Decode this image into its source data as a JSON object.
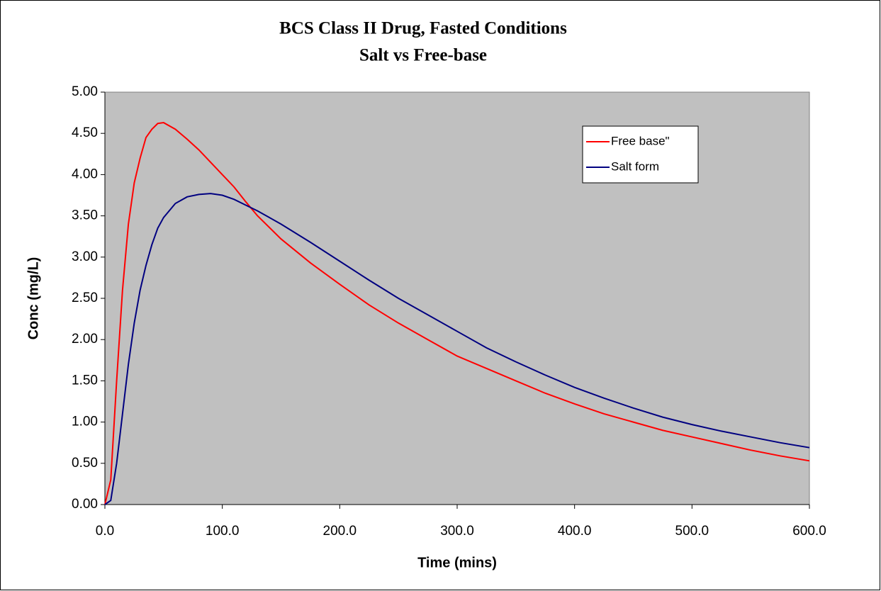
{
  "chart_data": {
    "type": "line",
    "title": "BCS Class II Drug, Fasted Conditions",
    "subtitle": "Salt vs Free-base",
    "x_label": "Time (mins)",
    "y_label": "Conc (mg/L)",
    "x": [
      0,
      5,
      10,
      15,
      20,
      25,
      30,
      35,
      40,
      45,
      50,
      60,
      70,
      80,
      90,
      100,
      110,
      120,
      130,
      140,
      150,
      175,
      200,
      225,
      250,
      275,
      300,
      325,
      350,
      375,
      400,
      425,
      450,
      475,
      500,
      525,
      550,
      575,
      600
    ],
    "series": [
      {
        "name": "Free base\"",
        "color": "#ff0000",
        "values": [
          0,
          0.3,
          1.5,
          2.6,
          3.4,
          3.9,
          4.2,
          4.45,
          4.55,
          4.62,
          4.63,
          4.55,
          4.43,
          4.3,
          4.15,
          4.0,
          3.85,
          3.67,
          3.5,
          3.36,
          3.22,
          2.93,
          2.67,
          2.42,
          2.2,
          2.0,
          1.8,
          1.65,
          1.5,
          1.35,
          1.22,
          1.1,
          1.0,
          0.9,
          0.82,
          0.74,
          0.66,
          0.59,
          0.53
        ]
      },
      {
        "name": "Salt form",
        "color": "#000080",
        "values": [
          0,
          0.05,
          0.5,
          1.1,
          1.7,
          2.2,
          2.6,
          2.9,
          3.15,
          3.35,
          3.48,
          3.65,
          3.73,
          3.76,
          3.77,
          3.75,
          3.7,
          3.63,
          3.56,
          3.48,
          3.4,
          3.18,
          2.95,
          2.72,
          2.5,
          2.3,
          2.1,
          1.9,
          1.73,
          1.57,
          1.42,
          1.29,
          1.17,
          1.06,
          0.97,
          0.89,
          0.82,
          0.75,
          0.69
        ]
      }
    ],
    "xlim": [
      0,
      600
    ],
    "ylim": [
      0,
      5
    ],
    "xticks": [
      {
        "value": 0,
        "label": "0.0"
      },
      {
        "value": 100,
        "label": "100.0"
      },
      {
        "value": 200,
        "label": "200.0"
      },
      {
        "value": 300,
        "label": "300.0"
      },
      {
        "value": 400,
        "label": "400.0"
      },
      {
        "value": 500,
        "label": "500.0"
      },
      {
        "value": 600,
        "label": "600.0"
      }
    ],
    "yticks": [
      {
        "value": 0,
        "label": "0.00"
      },
      {
        "value": 0.5,
        "label": "0.50"
      },
      {
        "value": 1,
        "label": "1.00"
      },
      {
        "value": 1.5,
        "label": "1.50"
      },
      {
        "value": 2,
        "label": "2.00"
      },
      {
        "value": 2.5,
        "label": "2.50"
      },
      {
        "value": 3,
        "label": "3.00"
      },
      {
        "value": 3.5,
        "label": "3.50"
      },
      {
        "value": 4,
        "label": "4.00"
      },
      {
        "value": 4.5,
        "label": "4.50"
      },
      {
        "value": 5,
        "label": "5.00"
      }
    ],
    "plot_background": "#c0c0c0",
    "legend": "top-right",
    "grid": false
  }
}
